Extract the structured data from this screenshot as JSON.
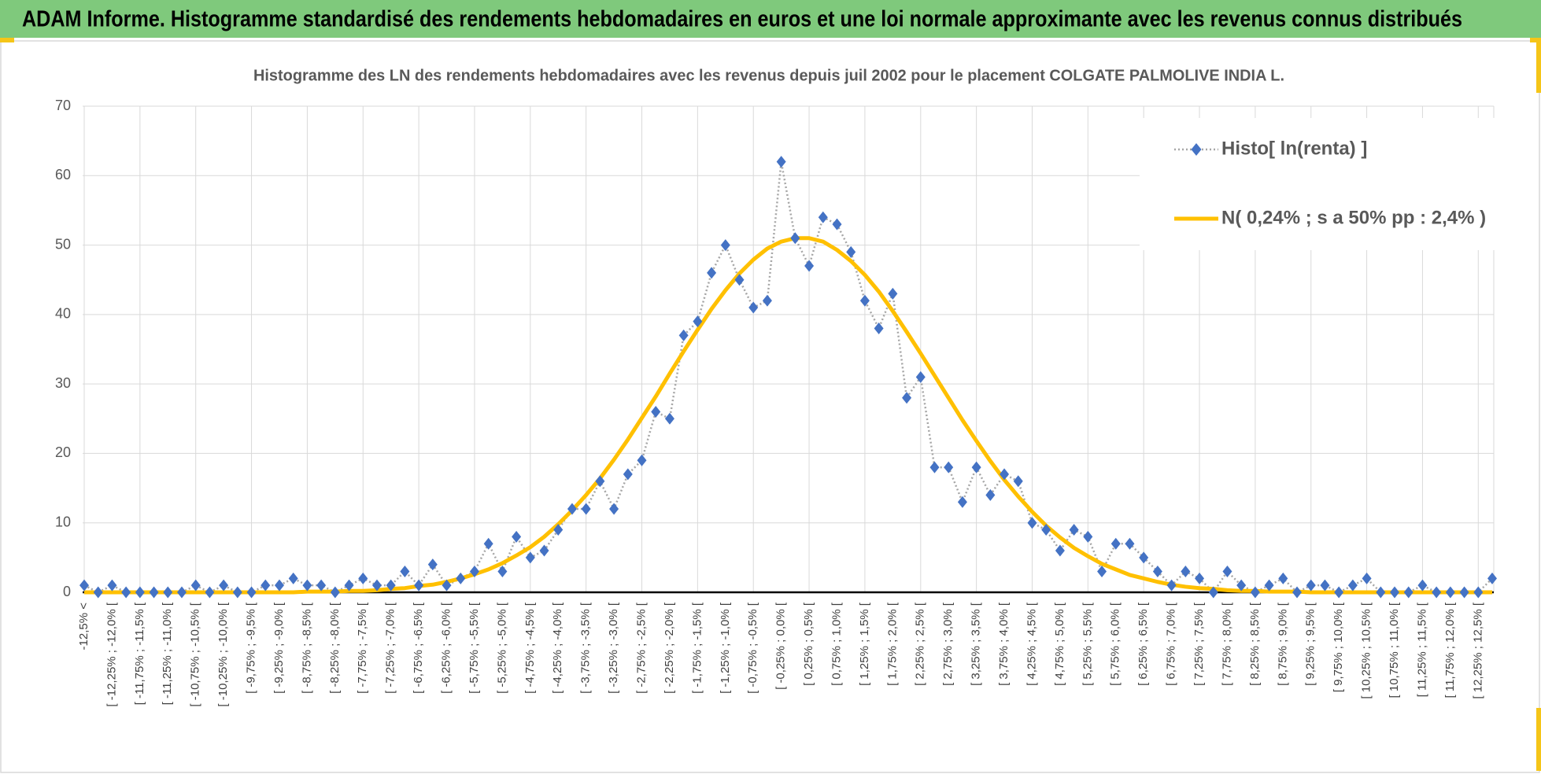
{
  "header": {
    "title": "ADAM Informe. Histogramme standardisé des rendements hebdomadaires en euros et une loi normale approximante avec les revenus connus distribués"
  },
  "chart_data": {
    "type": "line",
    "title": "Histogramme des LN des rendements hebdomadaires avec les revenus depuis juil 2002 pour le placement COLGATE PALMOLIVE INDIA L.",
    "categories": [
      "-12,5% <",
      null,
      "[ -12,25% ; -12,0% [",
      null,
      "[ -11,75% ; -11,5% [",
      null,
      "[ -11,25% ; -11,0% [",
      null,
      "[ -10,75% ; -10,5% [",
      null,
      "[ -10,25% ; -10,0% [",
      null,
      "[ -9,75% ; -9,5% [",
      null,
      "[ -9,25% ; -9,0% [",
      null,
      "[ -8,75% ; -8,5% [",
      null,
      "[ -8,25% ; -8,0% [",
      null,
      "[ -7,75% ; -7,5% [",
      null,
      "[ -7,25% ; -7,0% [",
      null,
      "[ -6,75% ; -6,5% [",
      null,
      "[ -6,25% ; -6,0% [",
      null,
      "[ -5,75% ; -5,5% [",
      null,
      "[ -5,25% ; -5,0% [",
      null,
      "[ -4,75% ; -4,5% [",
      null,
      "[ -4,25% ; -4,0% [",
      null,
      "[ -3,75% ; -3,5% [",
      null,
      "[ -3,25% ; -3,0% [",
      null,
      "[ -2,75% ; -2,5% [",
      null,
      "[ -2,25% ; -2,0% [",
      null,
      "[ -1,75% ; -1,5% [",
      null,
      "[ -1,25% ; -1,0% [",
      null,
      "[ -0,75% ; -0,5% [",
      null,
      "[ -0,25% ; 0,0% [",
      null,
      "[ 0,25% ; 0,5% [",
      null,
      "[ 0,75% ; 1,0% [",
      null,
      "[ 1,25% ; 1,5% [",
      null,
      "[ 1,75% ; 2,0% [",
      null,
      "[ 2,25% ; 2,5% [",
      null,
      "[ 2,75% ; 3,0% [",
      null,
      "[ 3,25% ; 3,5% [",
      null,
      "[ 3,75% ; 4,0% [",
      null,
      "[ 4,25% ; 4,5% [",
      null,
      "[ 4,75% ; 5,0% [",
      null,
      "[ 5,25% ; 5,5% [",
      null,
      "[ 5,75% ; 6,0% [",
      null,
      "[ 6,25% ; 6,5% [",
      null,
      "[ 6,75% ; 7,0% [",
      null,
      "[ 7,25% ; 7,5% [",
      null,
      "[ 7,75% ; 8,0% [",
      null,
      "[ 8,25% ; 8,5% [",
      null,
      "[ 8,75% ; 9,0% [",
      null,
      "[ 9,25% ; 9,5% [",
      null,
      "[ 9,75% ; 10,0% [",
      null,
      "[ 10,25% ; 10,5% [",
      null,
      "[ 10,75% ; 11,0% [",
      null,
      "[ 11,25% ; 11,5% [",
      null,
      "[ 11,75% ; 12,0% [",
      null,
      "[ 12,25% ; 12,5% [",
      null
    ],
    "series": [
      {
        "name": "Histo[ ln(renta) ]",
        "color": "#4472c4",
        "line_color": "#a6a6a6",
        "marker": "diamond",
        "values": [
          1,
          0,
          1,
          0,
          0,
          0,
          0,
          0,
          1,
          0,
          1,
          0,
          0,
          1,
          1,
          2,
          1,
          1,
          0,
          1,
          2,
          1,
          1,
          3,
          1,
          4,
          1,
          2,
          3,
          7,
          3,
          8,
          5,
          6,
          9,
          12,
          12,
          16,
          12,
          17,
          19,
          26,
          25,
          37,
          39,
          46,
          50,
          45,
          41,
          42,
          62,
          51,
          47,
          54,
          53,
          49,
          42,
          38,
          43,
          28,
          31,
          18,
          18,
          13,
          18,
          14,
          17,
          16,
          10,
          9,
          6,
          9,
          8,
          3,
          7,
          7,
          5,
          3,
          1,
          3,
          2,
          0,
          3,
          1,
          0,
          1,
          2,
          0,
          1,
          1,
          0,
          1,
          2,
          0,
          0,
          0,
          1,
          0,
          0,
          0,
          0,
          2
        ]
      },
      {
        "name": "N( 0,24% ; s a 50% pp : 2,4% )",
        "color": "#ffc000",
        "values": [
          0,
          0,
          0,
          0,
          0,
          0,
          0,
          0,
          0,
          0,
          0,
          0,
          0,
          0,
          0,
          0,
          0.1,
          0.1,
          0.1,
          0.2,
          0.2,
          0.3,
          0.5,
          0.6,
          0.9,
          1.1,
          1.5,
          2.0,
          2.6,
          3.3,
          4.2,
          5.3,
          6.5,
          8.0,
          9.8,
          11.8,
          14.0,
          16.4,
          19.1,
          22.0,
          25.1,
          28.2,
          31.5,
          34.7,
          37.8,
          40.8,
          43.5,
          45.9,
          47.9,
          49.5,
          50.5,
          51.0,
          51.0,
          50.5,
          49.3,
          47.7,
          45.7,
          43.3,
          40.5,
          37.5,
          34.4,
          31.2,
          28.0,
          24.8,
          21.8,
          18.9,
          16.2,
          13.8,
          11.6,
          9.6,
          7.9,
          6.4,
          5.2,
          4.1,
          3.3,
          2.5,
          2.0,
          1.5,
          1.1,
          0.8,
          0.6,
          0.5,
          0.3,
          0.2,
          0.2,
          0.1,
          0.1,
          0.1,
          0,
          0,
          0,
          0,
          0,
          0,
          0,
          0,
          0,
          0,
          0,
          0,
          0,
          0
        ]
      }
    ],
    "ylim": [
      0,
      70
    ],
    "yticks": [
      0,
      10,
      20,
      30,
      40,
      50,
      60,
      70
    ],
    "grid": true,
    "legend": "top-right"
  }
}
